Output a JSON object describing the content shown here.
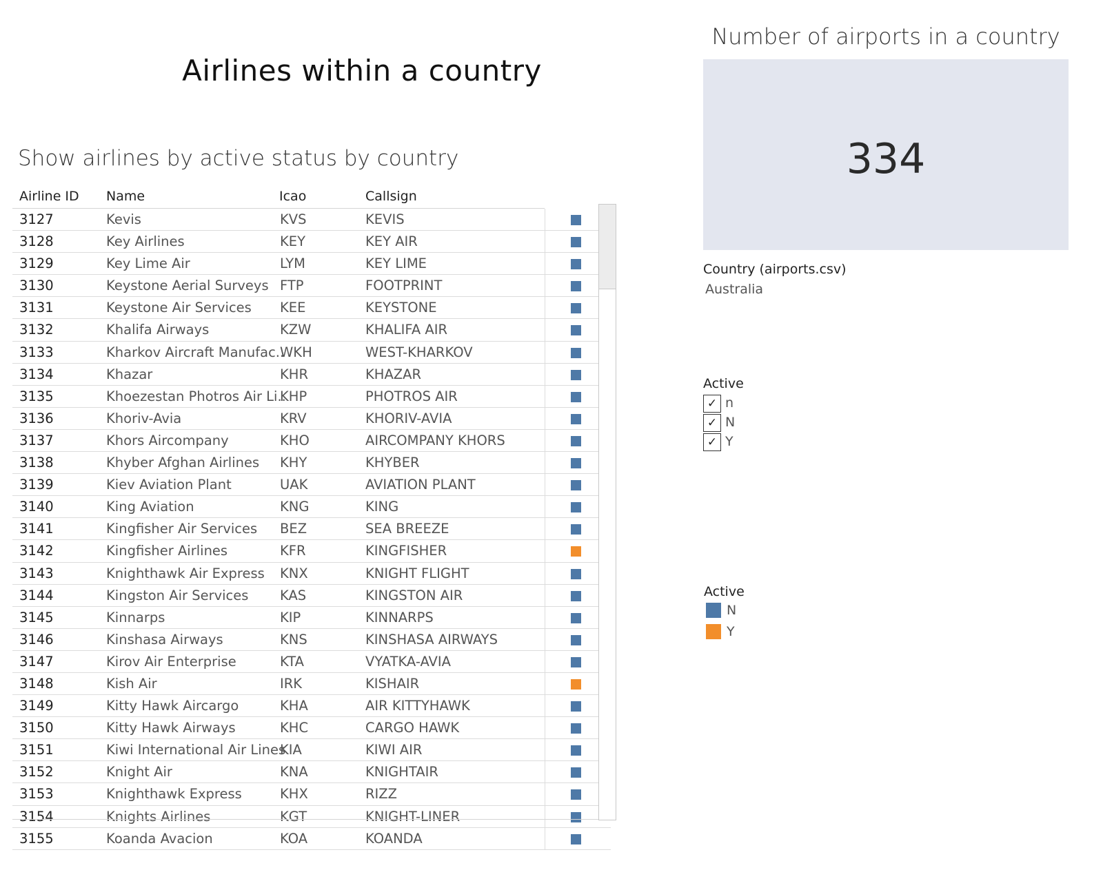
{
  "main_title": "Airlines within a country",
  "sheet_title": "Show airlines by active status by country",
  "colors": {
    "active_N": "#4e79a7",
    "active_Y": "#f28e2b",
    "kpi_bg": "#e3e6ef"
  },
  "table": {
    "headers": {
      "id": "Airline ID",
      "name": "Name",
      "icao": "Icao",
      "callsign": "Callsign"
    },
    "rows": [
      {
        "id": "3127",
        "name": "Kevis",
        "icao": "KVS",
        "callsign": "KEVIS",
        "active": "N"
      },
      {
        "id": "3128",
        "name": "Key Airlines",
        "icao": "KEY",
        "callsign": "KEY AIR",
        "active": "N"
      },
      {
        "id": "3129",
        "name": "Key Lime Air",
        "icao": "LYM",
        "callsign": "KEY LIME",
        "active": "N"
      },
      {
        "id": "3130",
        "name": "Keystone Aerial Surveys",
        "icao": "FTP",
        "callsign": "FOOTPRINT",
        "active": "N"
      },
      {
        "id": "3131",
        "name": "Keystone Air Services",
        "icao": "KEE",
        "callsign": "KEYSTONE",
        "active": "N"
      },
      {
        "id": "3132",
        "name": "Khalifa Airways",
        "icao": "KZW",
        "callsign": "KHALIFA AIR",
        "active": "N"
      },
      {
        "id": "3133",
        "name": "Kharkov Aircraft Manufac..",
        "icao": "WKH",
        "callsign": "WEST-KHARKOV",
        "active": "N"
      },
      {
        "id": "3134",
        "name": "Khazar",
        "icao": "KHR",
        "callsign": "KHAZAR",
        "active": "N"
      },
      {
        "id": "3135",
        "name": "Khoezestan Photros Air Li..",
        "icao": "KHP",
        "callsign": "PHOTROS AIR",
        "active": "N"
      },
      {
        "id": "3136",
        "name": "Khoriv-Avia",
        "icao": "KRV",
        "callsign": "KHORIV-AVIA",
        "active": "N"
      },
      {
        "id": "3137",
        "name": "Khors Aircompany",
        "icao": "KHO",
        "callsign": "AIRCOMPANY KHORS",
        "active": "N"
      },
      {
        "id": "3138",
        "name": "Khyber Afghan Airlines",
        "icao": "KHY",
        "callsign": "KHYBER",
        "active": "N"
      },
      {
        "id": "3139",
        "name": "Kiev Aviation Plant",
        "icao": "UAK",
        "callsign": "AVIATION PLANT",
        "active": "N"
      },
      {
        "id": "3140",
        "name": "King Aviation",
        "icao": "KNG",
        "callsign": "KING",
        "active": "N"
      },
      {
        "id": "3141",
        "name": "Kingfisher Air Services",
        "icao": "BEZ",
        "callsign": "SEA BREEZE",
        "active": "N"
      },
      {
        "id": "3142",
        "name": "Kingfisher Airlines",
        "icao": "KFR",
        "callsign": "KINGFISHER",
        "active": "Y"
      },
      {
        "id": "3143",
        "name": "Knighthawk Air Express",
        "icao": "KNX",
        "callsign": "KNIGHT FLIGHT",
        "active": "N"
      },
      {
        "id": "3144",
        "name": "Kingston Air Services",
        "icao": "KAS",
        "callsign": "KINGSTON AIR",
        "active": "N"
      },
      {
        "id": "3145",
        "name": "Kinnarps",
        "icao": "KIP",
        "callsign": "KINNARPS",
        "active": "N"
      },
      {
        "id": "3146",
        "name": "Kinshasa Airways",
        "icao": "KNS",
        "callsign": "KINSHASA AIRWAYS",
        "active": "N"
      },
      {
        "id": "3147",
        "name": "Kirov Air Enterprise",
        "icao": "KTA",
        "callsign": "VYATKA-AVIA",
        "active": "N"
      },
      {
        "id": "3148",
        "name": "Kish Air",
        "icao": "IRK",
        "callsign": "KISHAIR",
        "active": "Y"
      },
      {
        "id": "3149",
        "name": "Kitty Hawk Aircargo",
        "icao": "KHA",
        "callsign": "AIR KITTYHAWK",
        "active": "N"
      },
      {
        "id": "3150",
        "name": "Kitty Hawk Airways",
        "icao": "KHC",
        "callsign": "CARGO HAWK",
        "active": "N"
      },
      {
        "id": "3151",
        "name": "Kiwi International Air Lines",
        "icao": "KIA",
        "callsign": "KIWI AIR",
        "active": "N"
      },
      {
        "id": "3152",
        "name": "Knight Air",
        "icao": "KNA",
        "callsign": "KNIGHTAIR",
        "active": "N"
      },
      {
        "id": "3153",
        "name": "Knighthawk Express",
        "icao": "KHX",
        "callsign": "RIZZ",
        "active": "N"
      },
      {
        "id": "3154",
        "name": "Knights Airlines",
        "icao": "KGT",
        "callsign": "KNIGHT-LINER",
        "active": "N"
      },
      {
        "id": "3155",
        "name": "Koanda Avacion",
        "icao": "KOA",
        "callsign": "KOANDA",
        "active": "N"
      }
    ]
  },
  "kpi": {
    "title": "Number of airports in a country",
    "value": "334"
  },
  "country_filter": {
    "label": "Country (airports.csv)",
    "value": "Australia"
  },
  "active_filter": {
    "title": "Active",
    "options": [
      {
        "label": "n",
        "checked": true
      },
      {
        "label": "N",
        "checked": true
      },
      {
        "label": "Y",
        "checked": true
      }
    ]
  },
  "legend": {
    "title": "Active",
    "items": [
      {
        "label": "N",
        "color": "#4e79a7"
      },
      {
        "label": "Y",
        "color": "#f28e2b"
      }
    ]
  }
}
